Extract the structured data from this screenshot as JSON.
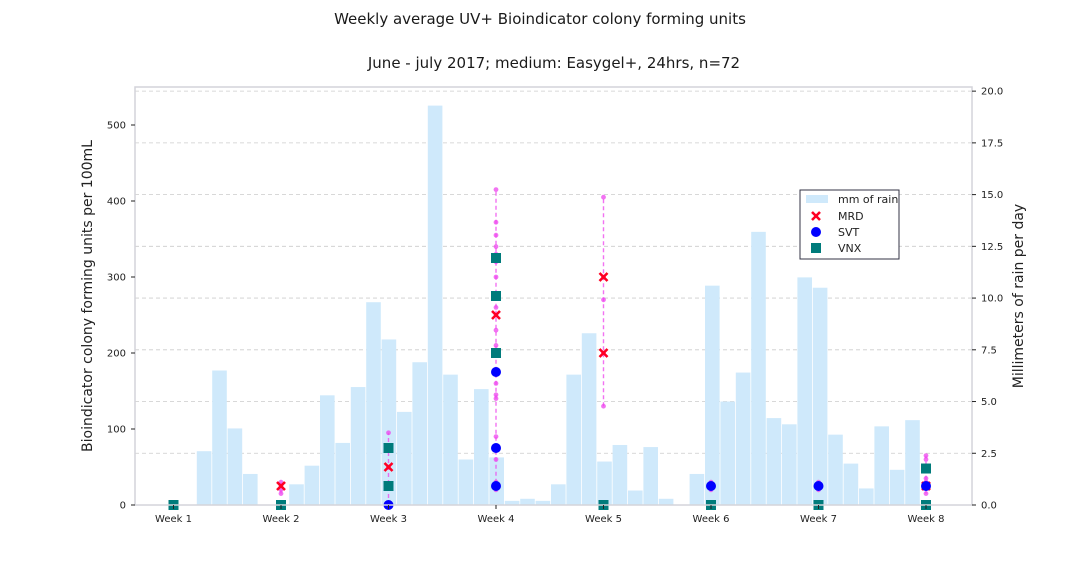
{
  "chart_data": {
    "type": "bar+scatter",
    "title": "Weekly average UV+ Bioindicator colony forming units",
    "subtitle": "June - july 2017; medium: Easygel+, 24hrs, n=72",
    "ylabel_left": "Bioindicator colony forming units per 100mL",
    "ylabel_right": "Millimeters of rain per day",
    "ylim_left": [
      0,
      550
    ],
    "yticks_left": [
      "0",
      "100",
      "200",
      "300",
      "400",
      "500"
    ],
    "ylim_right": [
      0,
      20.2
    ],
    "yticks_right": [
      "0.0",
      "2.5",
      "5.0",
      "7.5",
      "10.0",
      "12.5",
      "15.0",
      "17.5",
      "20.0"
    ],
    "categories": [
      "Week 1",
      "Week 2",
      "Week 3",
      "Week 4",
      "Week 5",
      "Week 6",
      "Week 7",
      "Week 8"
    ],
    "grid": true,
    "legend_position": "center-right",
    "rain": {
      "name": "mm of rain",
      "color": "#cfe9fb",
      "values": [
        0,
        0,
        2.6,
        6.5,
        3.7,
        1.5,
        0,
        0,
        1.0,
        1.9,
        5.3,
        3.0,
        5.7,
        9.8,
        8.0,
        4.5,
        6.9,
        19.3,
        6.3,
        2.2,
        5.6,
        2.3,
        0.2,
        0.3,
        0.2,
        1.0,
        6.3,
        8.3,
        2.1,
        2.9,
        0.7,
        2.8,
        0.3,
        0,
        1.5,
        10.6,
        5.0,
        6.4,
        13.2,
        4.2,
        3.9,
        11.0,
        10.5,
        3.4,
        2.0,
        0.8,
        3.8,
        1.7,
        4.1
      ]
    },
    "series": [
      {
        "name": "MRD",
        "marker": "x",
        "color": "#ff0022",
        "points": [
          [
            2,
            25
          ],
          [
            3,
            50
          ],
          [
            4,
            250
          ],
          [
            5,
            300
          ],
          [
            5,
            200
          ],
          [
            8,
            25
          ]
        ]
      },
      {
        "name": "SVT",
        "marker": "circle",
        "color": "#0000ff",
        "points": [
          [
            1,
            0
          ],
          [
            3,
            0
          ],
          [
            4,
            175
          ],
          [
            4,
            75
          ],
          [
            4,
            25
          ],
          [
            6,
            25
          ],
          [
            7,
            25
          ],
          [
            8,
            25
          ]
        ]
      },
      {
        "name": "VNX",
        "marker": "square",
        "color": "#007b7b",
        "points": [
          [
            1,
            0
          ],
          [
            2,
            0
          ],
          [
            3,
            75
          ],
          [
            3,
            25
          ],
          [
            4,
            325
          ],
          [
            4,
            275
          ],
          [
            4,
            200
          ],
          [
            5,
            0
          ],
          [
            6,
            0
          ],
          [
            7,
            0
          ],
          [
            8,
            48
          ],
          [
            8,
            0
          ]
        ]
      }
    ],
    "raw_samples": {
      "color": "#ee44ee",
      "ranges": [
        {
          "week": 2,
          "values": [
            15,
            20,
            25,
            30
          ]
        },
        {
          "week": 3,
          "values": [
            0,
            25,
            50,
            75,
            95
          ]
        },
        {
          "week": 4,
          "values": [
            20,
            25,
            30,
            60,
            75,
            90,
            140,
            145,
            160,
            175,
            200,
            210,
            230,
            250,
            260,
            275,
            300,
            320,
            330,
            340,
            355,
            372,
            415
          ]
        },
        {
          "week": 5,
          "values": [
            130,
            200,
            270,
            300,
            405
          ]
        },
        {
          "week": 6,
          "values": [
            20,
            25,
            30
          ]
        },
        {
          "week": 7,
          "values": [
            20,
            25,
            30
          ]
        },
        {
          "week": 8,
          "values": [
            15,
            25,
            30,
            35,
            60,
            65
          ]
        }
      ]
    }
  }
}
